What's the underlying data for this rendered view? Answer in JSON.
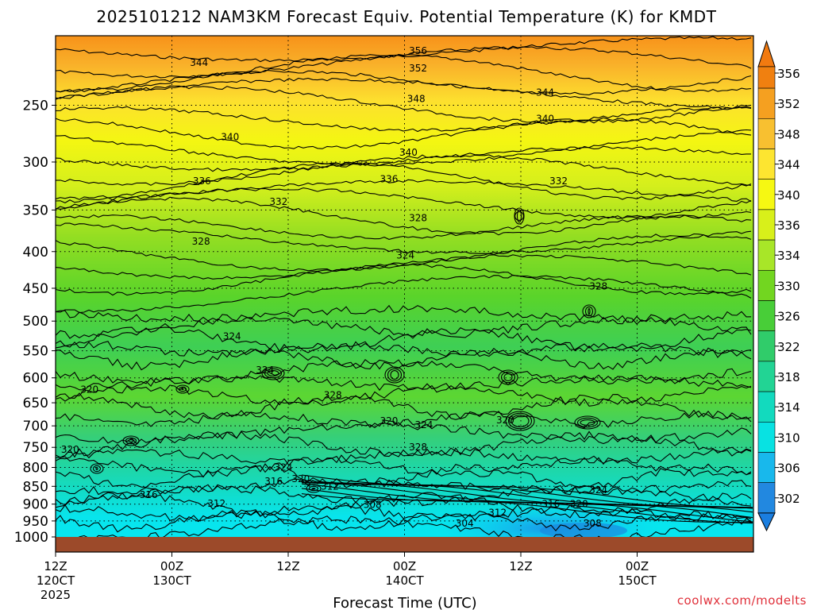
{
  "title": "2025101212 NAM3KM Forecast Equiv. Potential Temperature (K) for KMDT",
  "credit": "coolwx.com/modelts",
  "colors": {
    "ground": "#9c4a2a",
    "grid": "#000000"
  },
  "chart_data": {
    "type": "contour",
    "variable": "Equivalent Potential Temperature (K)",
    "xlabel": "Forecast Time (UTC)",
    "ylabel": "",
    "x_range_hours": [
      0,
      72
    ],
    "y_range_hpa": [
      1000,
      200
    ],
    "y_scale": "log-pressure",
    "grid": true,
    "y_ticks": [
      250,
      300,
      350,
      400,
      450,
      500,
      550,
      600,
      650,
      700,
      750,
      800,
      850,
      900,
      950,
      1000
    ],
    "x_ticks": [
      {
        "hour": 0,
        "l1": "12Z",
        "l2": "120CT",
        "l3": "2025"
      },
      {
        "hour": 12,
        "l1": "00Z",
        "l2": "130CT",
        "l3": ""
      },
      {
        "hour": 24,
        "l1": "12Z",
        "l2": "",
        "l3": ""
      },
      {
        "hour": 36,
        "l1": "00Z",
        "l2": "140CT",
        "l3": ""
      },
      {
        "hour": 48,
        "l1": "12Z",
        "l2": "",
        "l3": ""
      },
      {
        "hour": 60,
        "l1": "00Z",
        "l2": "150CT",
        "l3": ""
      }
    ],
    "colorbar": {
      "labels": [
        356,
        352,
        348,
        344,
        340,
        336,
        334,
        330,
        326,
        322,
        318,
        314,
        310,
        306,
        302
      ],
      "colors": [
        "#f08010",
        "#f5a020",
        "#f8c030",
        "#fde530",
        "#f6f812",
        "#d8f01a",
        "#a8e628",
        "#72d620",
        "#48ce38",
        "#30cc6a",
        "#22d494",
        "#12dabe",
        "#08e2e2",
        "#18b8ec",
        "#2288e0"
      ]
    },
    "contour_labels": [
      {
        "value": "356",
        "hour": 37.4,
        "p": 210
      },
      {
        "value": "352",
        "hour": 37.4,
        "p": 222
      },
      {
        "value": "348",
        "hour": 37.2,
        "p": 245
      },
      {
        "value": "344",
        "hour": 14.8,
        "p": 218
      },
      {
        "value": "344",
        "hour": 50.5,
        "p": 240
      },
      {
        "value": "340",
        "hour": 18.0,
        "p": 277
      },
      {
        "value": "340",
        "hour": 36.4,
        "p": 291
      },
      {
        "value": "340",
        "hour": 50.5,
        "p": 261
      },
      {
        "value": "336",
        "hour": 15.1,
        "p": 319
      },
      {
        "value": "336",
        "hour": 34.4,
        "p": 317
      },
      {
        "value": "332",
        "hour": 23.0,
        "p": 341
      },
      {
        "value": "332",
        "hour": 51.9,
        "p": 319
      },
      {
        "value": "328",
        "hour": 15.0,
        "p": 387
      },
      {
        "value": "328",
        "hour": 37.4,
        "p": 359
      },
      {
        "value": "328",
        "hour": 56.0,
        "p": 447
      },
      {
        "value": "324",
        "hour": 36.1,
        "p": 405
      },
      {
        "value": "324",
        "hour": 18.2,
        "p": 525
      },
      {
        "value": "324",
        "hour": 21.6,
        "p": 585
      },
      {
        "value": "324",
        "hour": 38.0,
        "p": 698
      },
      {
        "value": "324",
        "hour": 56.0,
        "p": 860
      },
      {
        "value": "324",
        "hour": 23.5,
        "p": 800
      },
      {
        "value": "328",
        "hour": 28.6,
        "p": 634
      },
      {
        "value": "328",
        "hour": 37.4,
        "p": 750
      },
      {
        "value": "320",
        "hour": 3.5,
        "p": 623
      },
      {
        "value": "320",
        "hour": 1.5,
        "p": 755
      },
      {
        "value": "320",
        "hour": 34.4,
        "p": 689
      },
      {
        "value": "320",
        "hour": 46.4,
        "p": 687
      },
      {
        "value": "320",
        "hour": 25.3,
        "p": 830
      },
      {
        "value": "320",
        "hour": 54.0,
        "p": 900
      },
      {
        "value": "316",
        "hour": 22.5,
        "p": 837
      },
      {
        "value": "316",
        "hour": 9.6,
        "p": 873
      },
      {
        "value": "316",
        "hour": 51.1,
        "p": 900
      },
      {
        "value": "312",
        "hour": 28.3,
        "p": 850
      },
      {
        "value": "312",
        "hour": 16.6,
        "p": 898
      },
      {
        "value": "312",
        "hour": 45.6,
        "p": 925
      },
      {
        "value": "308",
        "hour": 32.7,
        "p": 902
      },
      {
        "value": "308",
        "hour": 55.4,
        "p": 958
      },
      {
        "value": "304",
        "hour": 42.2,
        "p": 958
      }
    ]
  }
}
